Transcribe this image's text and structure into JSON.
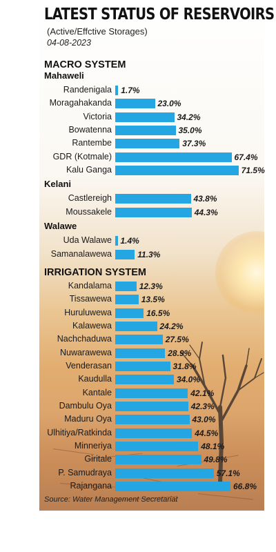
{
  "title": "LATEST STATUS OF RESERVOIRS",
  "subtitle": "(Active/Effctive Storages)",
  "date": "04-08-2023",
  "source": "Source: Water Management Secretariat",
  "colors": {
    "bar": "#23a6e2",
    "text": "#1a1a1a"
  },
  "chart_data": {
    "type": "bar",
    "orientation": "horizontal",
    "unit": "%",
    "xlim": [
      0,
      100
    ],
    "grid": false,
    "legend": "none",
    "sections": [
      {
        "name": "MACRO SYSTEM",
        "groups": [
          {
            "name": "Mahaweli",
            "categories": [
              "Randenigala",
              "Moragahakanda",
              "Victoria",
              "Bowatenna",
              "Rantembe",
              "GDR (Kotmale)",
              "Kalu Ganga"
            ],
            "values": [
              1.7,
              23.0,
              34.2,
              35.0,
              37.3,
              67.4,
              71.5
            ],
            "labels": [
              "1.7%",
              "23.0%",
              "34.2%",
              "35.0%",
              "37.3%",
              "67.4%",
              "71.5%"
            ]
          },
          {
            "name": "Kelani",
            "categories": [
              "Castlereigh",
              "Moussakele"
            ],
            "values": [
              43.8,
              44.3
            ],
            "labels": [
              "43.8%",
              "44.3%"
            ]
          },
          {
            "name": "Walawe",
            "categories": [
              "Uda Walawe",
              "Samanalawewa"
            ],
            "values": [
              1.4,
              11.3
            ],
            "labels": [
              "1.4%",
              "11.3%"
            ]
          }
        ]
      },
      {
        "name": "IRRIGATION SYSTEM",
        "groups": [
          {
            "name": "",
            "categories": [
              "Kandalama",
              "Tissawewa",
              "Huruluwewa",
              "Kalawewa",
              "Nachchaduwa",
              "Nuwarawewa",
              "Venderasan",
              "Kaudulla",
              "Kantale",
              "Dambulu Oya",
              "Maduru Oya",
              "Ulhitiya/Ratkinda",
              "Minneriya",
              "Giritale",
              "P. Samudraya",
              "Rajangana"
            ],
            "values": [
              12.3,
              13.5,
              16.5,
              24.2,
              27.5,
              28.9,
              31.8,
              34.0,
              42.1,
              42.3,
              43.0,
              44.5,
              48.1,
              49.8,
              57.1,
              66.8
            ],
            "labels": [
              "12.3%",
              "13.5%",
              "16.5%",
              "24.2%",
              "27.5%",
              "28.9%",
              "31.8%",
              "34.0%",
              "42.1%",
              "42.3%",
              "43.0%",
              "44.5%",
              "48.1%",
              "49.8%",
              "57.1%",
              "66.8%"
            ]
          }
        ]
      }
    ]
  }
}
